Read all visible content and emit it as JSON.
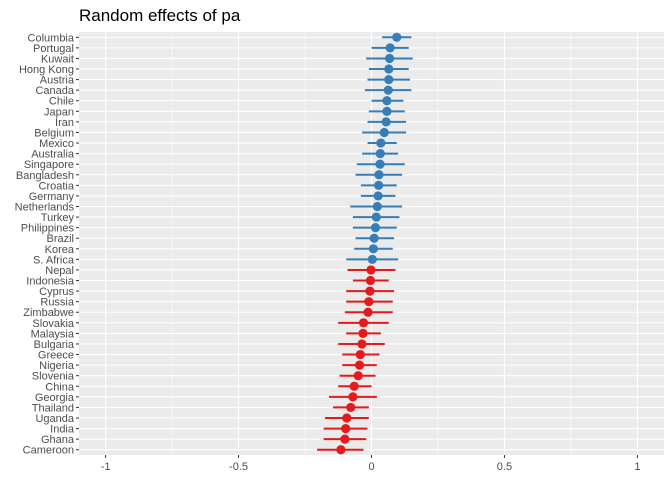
{
  "chart_data": {
    "type": "scatter",
    "title": "Random effects of pa",
    "xlabel": "",
    "ylabel": "",
    "xlim": [
      -1.1,
      1.1
    ],
    "xticks": [
      -1,
      -0.5,
      0,
      0.5,
      1
    ],
    "xtick_labels": [
      "-1",
      "-0.5",
      "0",
      "0.5",
      "1"
    ],
    "grid": true,
    "legend": "none",
    "colors": {
      "positive": "#377eb8",
      "negative": "#e41a1c",
      "panel": "#ebebeb",
      "grid": "#ffffff"
    },
    "points": [
      {
        "label": "Columbia",
        "value": 0.095,
        "lower": 0.04,
        "upper": 0.15
      },
      {
        "label": "Portugal",
        "value": 0.07,
        "lower": 0.0,
        "upper": 0.14
      },
      {
        "label": "Kuwait",
        "value": 0.068,
        "lower": -0.02,
        "upper": 0.155
      },
      {
        "label": "Hong Kong",
        "value": 0.065,
        "lower": -0.01,
        "upper": 0.14
      },
      {
        "label": "Austria",
        "value": 0.065,
        "lower": -0.015,
        "upper": 0.145
      },
      {
        "label": "Canada",
        "value": 0.063,
        "lower": -0.025,
        "upper": 0.15
      },
      {
        "label": "Chile",
        "value": 0.058,
        "lower": 0.0,
        "upper": 0.12
      },
      {
        "label": "Japan",
        "value": 0.058,
        "lower": -0.01,
        "upper": 0.125
      },
      {
        "label": "Iran",
        "value": 0.055,
        "lower": -0.015,
        "upper": 0.13
      },
      {
        "label": "Belgium",
        "value": 0.048,
        "lower": -0.035,
        "upper": 0.13
      },
      {
        "label": "Mexico",
        "value": 0.035,
        "lower": -0.015,
        "upper": 0.095
      },
      {
        "label": "Australia",
        "value": 0.033,
        "lower": -0.035,
        "upper": 0.1
      },
      {
        "label": "Singapore",
        "value": 0.032,
        "lower": -0.055,
        "upper": 0.125
      },
      {
        "label": "Bangladesh",
        "value": 0.028,
        "lower": -0.06,
        "upper": 0.115
      },
      {
        "label": "Croatia",
        "value": 0.027,
        "lower": -0.04,
        "upper": 0.095
      },
      {
        "label": "Germany",
        "value": 0.025,
        "lower": -0.04,
        "upper": 0.09
      },
      {
        "label": "Netherlands",
        "value": 0.022,
        "lower": -0.08,
        "upper": 0.115
      },
      {
        "label": "Turkey",
        "value": 0.018,
        "lower": -0.07,
        "upper": 0.105
      },
      {
        "label": "Philippines",
        "value": 0.015,
        "lower": -0.07,
        "upper": 0.095
      },
      {
        "label": "Brazil",
        "value": 0.01,
        "lower": -0.06,
        "upper": 0.085
      },
      {
        "label": "Korea",
        "value": 0.007,
        "lower": -0.065,
        "upper": 0.08
      },
      {
        "label": "S. Africa",
        "value": 0.003,
        "lower": -0.095,
        "upper": 0.1
      },
      {
        "label": "Nepal",
        "value": -0.002,
        "lower": -0.09,
        "upper": 0.09
      },
      {
        "label": "Indonesia",
        "value": -0.004,
        "lower": -0.07,
        "upper": 0.065
      },
      {
        "label": "Cyprus",
        "value": -0.006,
        "lower": -0.095,
        "upper": 0.085
      },
      {
        "label": "Russia",
        "value": -0.01,
        "lower": -0.095,
        "upper": 0.08
      },
      {
        "label": "Zimbabwe",
        "value": -0.013,
        "lower": -0.1,
        "upper": 0.08
      },
      {
        "label": "Slovakia",
        "value": -0.03,
        "lower": -0.125,
        "upper": 0.065
      },
      {
        "label": "Malaysia",
        "value": -0.032,
        "lower": -0.095,
        "upper": 0.035
      },
      {
        "label": "Bulgaria",
        "value": -0.036,
        "lower": -0.125,
        "upper": 0.05
      },
      {
        "label": "Greece",
        "value": -0.042,
        "lower": -0.11,
        "upper": 0.03
      },
      {
        "label": "Nigeria",
        "value": -0.045,
        "lower": -0.11,
        "upper": 0.02
      },
      {
        "label": "Slovenia",
        "value": -0.05,
        "lower": -0.12,
        "upper": 0.015
      },
      {
        "label": "China",
        "value": -0.065,
        "lower": -0.125,
        "upper": 0.0
      },
      {
        "label": "Georgia",
        "value": -0.07,
        "lower": -0.16,
        "upper": 0.02
      },
      {
        "label": "Thailand",
        "value": -0.078,
        "lower": -0.145,
        "upper": -0.01
      },
      {
        "label": "Uganda",
        "value": -0.093,
        "lower": -0.175,
        "upper": -0.01
      },
      {
        "label": "India",
        "value": -0.097,
        "lower": -0.18,
        "upper": -0.015
      },
      {
        "label": "Ghana",
        "value": -0.1,
        "lower": -0.18,
        "upper": -0.02
      },
      {
        "label": "Cameroon",
        "value": -0.115,
        "lower": -0.205,
        "upper": -0.03
      }
    ]
  }
}
